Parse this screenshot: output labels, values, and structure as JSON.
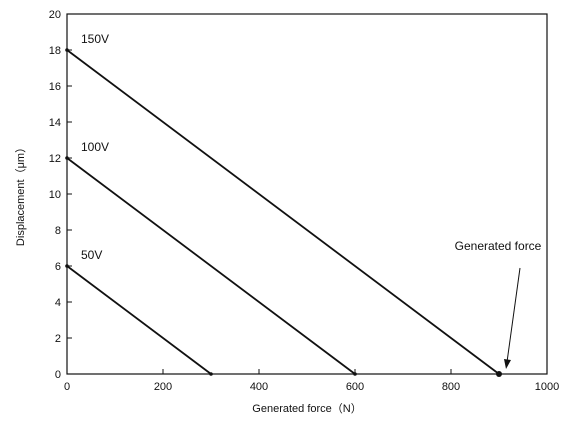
{
  "chart_data": {
    "type": "line",
    "xlabel": "Generated force（N）",
    "ylabel": "Displacement（μm）",
    "xlim": [
      0,
      1000
    ],
    "ylim": [
      0,
      20
    ],
    "x_ticks": [
      0,
      200,
      400,
      600,
      800,
      1000
    ],
    "y_ticks": [
      0,
      2,
      4,
      6,
      8,
      10,
      12,
      14,
      16,
      18,
      20
    ],
    "grid": false,
    "series": [
      {
        "name": "150V",
        "x": [
          0,
          900
        ],
        "y": [
          18,
          0
        ]
      },
      {
        "name": "100V",
        "x": [
          0,
          600
        ],
        "y": [
          12,
          0
        ]
      },
      {
        "name": "50V",
        "x": [
          0,
          300
        ],
        "y": [
          6,
          0
        ]
      }
    ],
    "annotation": {
      "text": "Generated force",
      "x": 900,
      "y": 0
    },
    "line_color": "#111111"
  }
}
